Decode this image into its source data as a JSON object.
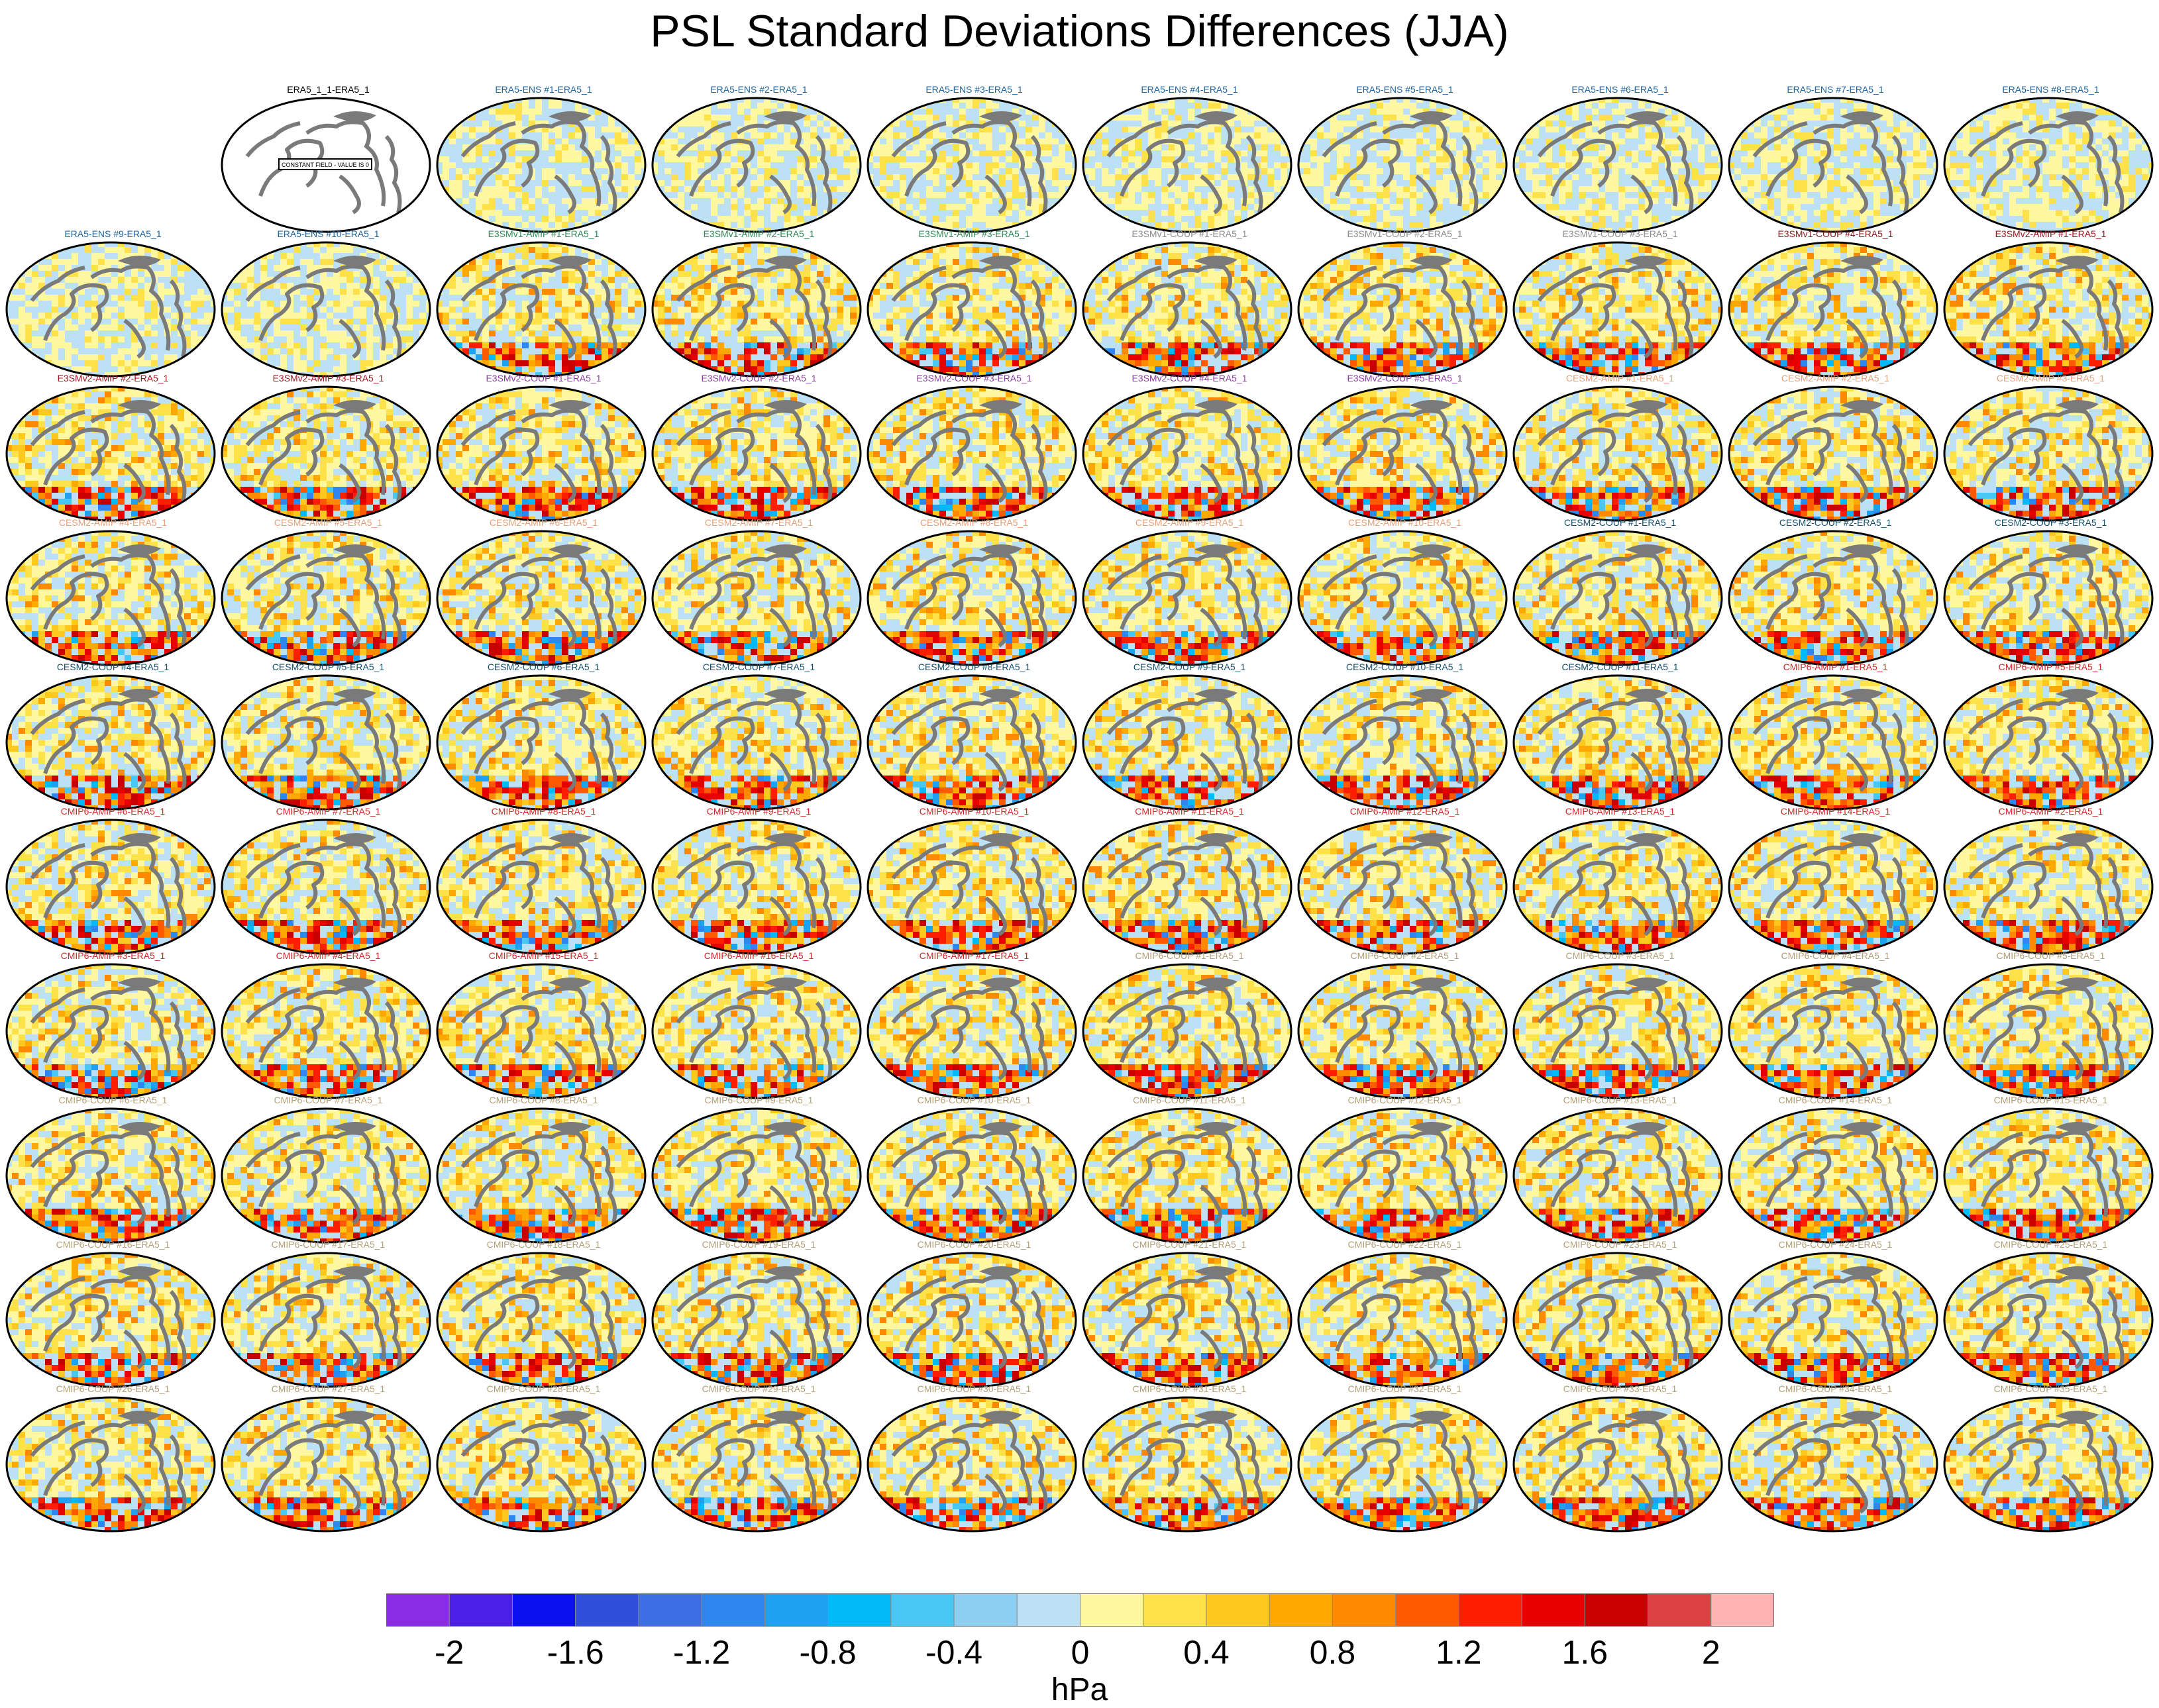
{
  "title": "PSL Standard Deviations Differences (JJA)",
  "colorbar": {
    "unit": "hPa",
    "ticks": [
      "-2",
      "-1.6",
      "-1.2",
      "-0.8",
      "-0.4",
      "0",
      "0.4",
      "0.8",
      "1.2",
      "1.6",
      "2"
    ],
    "colors": [
      "#8a2be6",
      "#4b1fe8",
      "#0a10f0",
      "#3050dc",
      "#3e6ee6",
      "#2e86f0",
      "#1ea2f0",
      "#00baf8",
      "#48c6f4",
      "#8ccff0",
      "#bce0f4",
      "#fff8a0",
      "#ffe14a",
      "#ffc81e",
      "#ffa800",
      "#ff8a00",
      "#ff5a00",
      "#ff1e00",
      "#e60000",
      "#c80000",
      "#dc4040",
      "#ffb4b4"
    ]
  },
  "group_colors": {
    "ref": "#000000",
    "ERA5-ENS": "#1e64a0",
    "E3SMv1-AMIP": "#2e8b57",
    "E3SMv1-COUP": "#8c8c8c",
    "E3SMv1-COUP-alt": "#8b1a1a",
    "E3SMv2-AMIP": "#a0141e",
    "E3SMv2-COUP": "#8c3ca0",
    "CESM2-AMIP": "#e6a078",
    "CESM2-COUP": "#14506e",
    "CMIP6-AMIP": "#d22828",
    "CMIP6-COUP": "#b4a078"
  },
  "reference_panel": {
    "label": "ERA5_1_1-ERA5_1",
    "group": "ref",
    "field_note": "CONSTANT FIELD - VALUE IS 0"
  },
  "panels": [
    {
      "label": "ERA5-ENS   #1-ERA5_1",
      "group": "ERA5-ENS"
    },
    {
      "label": "ERA5-ENS   #2-ERA5_1",
      "group": "ERA5-ENS"
    },
    {
      "label": "ERA5-ENS   #3-ERA5_1",
      "group": "ERA5-ENS"
    },
    {
      "label": "ERA5-ENS   #4-ERA5_1",
      "group": "ERA5-ENS"
    },
    {
      "label": "ERA5-ENS   #5-ERA5_1",
      "group": "ERA5-ENS"
    },
    {
      "label": "ERA5-ENS   #6-ERA5_1",
      "group": "ERA5-ENS"
    },
    {
      "label": "ERA5-ENS   #7-ERA5_1",
      "group": "ERA5-ENS"
    },
    {
      "label": "ERA5-ENS   #8-ERA5_1",
      "group": "ERA5-ENS"
    },
    {
      "label": "ERA5-ENS   #9-ERA5_1",
      "group": "ERA5-ENS"
    },
    {
      "label": "ERA5-ENS   #10-ERA5_1",
      "group": "ERA5-ENS"
    },
    {
      "label": "E3SMv1-AMIP #1-ERA5_1",
      "group": "E3SMv1-AMIP"
    },
    {
      "label": "E3SMv1-AMIP #2-ERA5_1",
      "group": "E3SMv1-AMIP"
    },
    {
      "label": "E3SMv1-AMIP #3-ERA5_1",
      "group": "E3SMv1-AMIP"
    },
    {
      "label": "E3SMv1-COUP #1-ERA5_1",
      "group": "E3SMv1-COUP"
    },
    {
      "label": "E3SMv1-COUP #2-ERA5_1",
      "group": "E3SMv1-COUP"
    },
    {
      "label": "E3SMv1-COUP #3-ERA5_1",
      "group": "E3SMv1-COUP"
    },
    {
      "label": "E3SMv1-COUP #4-ERA5_1",
      "group": "E3SMv1-COUP-alt"
    },
    {
      "label": "E3SMv2-AMIP #1-ERA5_1",
      "group": "E3SMv2-AMIP"
    },
    {
      "label": "E3SMv2-AMIP #2-ERA5_1",
      "group": "E3SMv2-AMIP"
    },
    {
      "label": "E3SMv2-AMIP #3-ERA5_1",
      "group": "E3SMv2-AMIP"
    },
    {
      "label": "E3SMv2-COUP #1-ERA5_1",
      "group": "E3SMv2-COUP"
    },
    {
      "label": "E3SMv2-COUP #2-ERA5_1",
      "group": "E3SMv2-COUP"
    },
    {
      "label": "E3SMv2-COUP #3-ERA5_1",
      "group": "E3SMv2-COUP"
    },
    {
      "label": "E3SMv2-COUP #4-ERA5_1",
      "group": "E3SMv2-COUP"
    },
    {
      "label": "E3SMv2-COUP #5-ERA5_1",
      "group": "E3SMv2-COUP"
    },
    {
      "label": "CESM2-AMIP  #1-ERA5_1",
      "group": "CESM2-AMIP"
    },
    {
      "label": "CESM2-AMIP  #2-ERA5_1",
      "group": "CESM2-AMIP"
    },
    {
      "label": "CESM2-AMIP  #3-ERA5_1",
      "group": "CESM2-AMIP"
    },
    {
      "label": "CESM2-AMIP  #4-ERA5_1",
      "group": "CESM2-AMIP"
    },
    {
      "label": "CESM2-AMIP  #5-ERA5_1",
      "group": "CESM2-AMIP"
    },
    {
      "label": "CESM2-AMIP  #6-ERA5_1",
      "group": "CESM2-AMIP"
    },
    {
      "label": "CESM2-AMIP  #7-ERA5_1",
      "group": "CESM2-AMIP"
    },
    {
      "label": "CESM2-AMIP  #8-ERA5_1",
      "group": "CESM2-AMIP"
    },
    {
      "label": "CESM2-AMIP  #9-ERA5_1",
      "group": "CESM2-AMIP"
    },
    {
      "label": "CESM2-AMIP  #10-ERA5_1",
      "group": "CESM2-AMIP"
    },
    {
      "label": "CESM2-COUP  #1-ERA5_1",
      "group": "CESM2-COUP"
    },
    {
      "label": "CESM2-COUP  #2-ERA5_1",
      "group": "CESM2-COUP"
    },
    {
      "label": "CESM2-COUP  #3-ERA5_1",
      "group": "CESM2-COUP"
    },
    {
      "label": "CESM2-COUP  #4-ERA5_1",
      "group": "CESM2-COUP"
    },
    {
      "label": "CESM2-COUP  #5-ERA5_1",
      "group": "CESM2-COUP"
    },
    {
      "label": "CESM2-COUP  #6-ERA5_1",
      "group": "CESM2-COUP"
    },
    {
      "label": "CESM2-COUP  #7-ERA5_1",
      "group": "CESM2-COUP"
    },
    {
      "label": "CESM2-COUP  #8-ERA5_1",
      "group": "CESM2-COUP"
    },
    {
      "label": "CESM2-COUP  #9-ERA5_1",
      "group": "CESM2-COUP"
    },
    {
      "label": "CESM2-COUP  #10-ERA5_1",
      "group": "CESM2-COUP"
    },
    {
      "label": "CESM2-COUP  #11-ERA5_1",
      "group": "CESM2-COUP"
    },
    {
      "label": "CMIP6-AMIP  #1-ERA5_1",
      "group": "CMIP6-AMIP"
    },
    {
      "label": "CMIP6-AMIP  #5-ERA5_1",
      "group": "CMIP6-AMIP"
    },
    {
      "label": "CMIP6-AMIP  #6-ERA5_1",
      "group": "CMIP6-AMIP"
    },
    {
      "label": "CMIP6-AMIP  #7-ERA5_1",
      "group": "CMIP6-AMIP"
    },
    {
      "label": "CMIP6-AMIP  #8-ERA5_1",
      "group": "CMIP6-AMIP"
    },
    {
      "label": "CMIP6-AMIP  #9-ERA5_1",
      "group": "CMIP6-AMIP"
    },
    {
      "label": "CMIP6-AMIP  #10-ERA5_1",
      "group": "CMIP6-AMIP"
    },
    {
      "label": "CMIP6-AMIP  #11-ERA5_1",
      "group": "CMIP6-AMIP"
    },
    {
      "label": "CMIP6-AMIP  #12-ERA5_1",
      "group": "CMIP6-AMIP"
    },
    {
      "label": "CMIP6-AMIP  #13-ERA5_1",
      "group": "CMIP6-AMIP"
    },
    {
      "label": "CMIP6-AMIP  #14-ERA5_1",
      "group": "CMIP6-AMIP"
    },
    {
      "label": "CMIP6-AMIP  #2-ERA5_1",
      "group": "CMIP6-AMIP"
    },
    {
      "label": "CMIP6-AMIP  #3-ERA5_1",
      "group": "CMIP6-AMIP"
    },
    {
      "label": "CMIP6-AMIP  #4-ERA5_1",
      "group": "CMIP6-AMIP"
    },
    {
      "label": "CMIP6-AMIP  #15-ERA5_1",
      "group": "CMIP6-AMIP"
    },
    {
      "label": "CMIP6-AMIP  #16-ERA5_1",
      "group": "CMIP6-AMIP"
    },
    {
      "label": "CMIP6-AMIP  #17-ERA5_1",
      "group": "CMIP6-AMIP"
    },
    {
      "label": "CMIP6-COUP  #1-ERA5_1",
      "group": "CMIP6-COUP"
    },
    {
      "label": "CMIP6-COUP  #2-ERA5_1",
      "group": "CMIP6-COUP"
    },
    {
      "label": "CMIP6-COUP  #3-ERA5_1",
      "group": "CMIP6-COUP"
    },
    {
      "label": "CMIP6-COUP  #4-ERA5_1",
      "group": "CMIP6-COUP"
    },
    {
      "label": "CMIP6-COUP  #5-ERA5_1",
      "group": "CMIP6-COUP"
    },
    {
      "label": "CMIP6-COUP  #6-ERA5_1",
      "group": "CMIP6-COUP"
    },
    {
      "label": "CMIP6-COUP  #7-ERA5_1",
      "group": "CMIP6-COUP"
    },
    {
      "label": "CMIP6-COUP  #8-ERA5_1",
      "group": "CMIP6-COUP"
    },
    {
      "label": "CMIP6-COUP  #9-ERA5_1",
      "group": "CMIP6-COUP"
    },
    {
      "label": "CMIP6-COUP  #10-ERA5_1",
      "group": "CMIP6-COUP"
    },
    {
      "label": "CMIP6-COUP  #11-ERA5_1",
      "group": "CMIP6-COUP"
    },
    {
      "label": "CMIP6-COUP  #12-ERA5_1",
      "group": "CMIP6-COUP"
    },
    {
      "label": "CMIP6-COUP  #13-ERA5_1",
      "group": "CMIP6-COUP"
    },
    {
      "label": "CMIP6-COUP  #14-ERA5_1",
      "group": "CMIP6-COUP"
    },
    {
      "label": "CMIP6-COUP  #15-ERA5_1",
      "group": "CMIP6-COUP"
    },
    {
      "label": "CMIP6-COUP  #16-ERA5_1",
      "group": "CMIP6-COUP"
    },
    {
      "label": "CMIP6-COUP  #17-ERA5_1",
      "group": "CMIP6-COUP"
    },
    {
      "label": "CMIP6-COUP  #18-ERA5_1",
      "group": "CMIP6-COUP"
    },
    {
      "label": "CMIP6-COUP  #19-ERA5_1",
      "group": "CMIP6-COUP"
    },
    {
      "label": "CMIP6-COUP  #20-ERA5_1",
      "group": "CMIP6-COUP"
    },
    {
      "label": "CMIP6-COUP  #21-ERA5_1",
      "group": "CMIP6-COUP"
    },
    {
      "label": "CMIP6-COUP  #22-ERA5_1",
      "group": "CMIP6-COUP"
    },
    {
      "label": "CMIP6-COUP  #23-ERA5_1",
      "group": "CMIP6-COUP"
    },
    {
      "label": "CMIP6-COUP  #24-ERA5_1",
      "group": "CMIP6-COUP"
    },
    {
      "label": "CMIP6-COUP  #25-ERA5_1",
      "group": "CMIP6-COUP"
    },
    {
      "label": "CMIP6-COUP  #26-ERA5_1",
      "group": "CMIP6-COUP"
    },
    {
      "label": "CMIP6-COUP  #27-ERA5_1",
      "group": "CMIP6-COUP"
    },
    {
      "label": "CMIP6-COUP  #28-ERA5_1",
      "group": "CMIP6-COUP"
    },
    {
      "label": "CMIP6-COUP  #29-ERA5_1",
      "group": "CMIP6-COUP"
    },
    {
      "label": "CMIP6-COUP  #30-ERA5_1",
      "group": "CMIP6-COUP"
    },
    {
      "label": "CMIP6-COUP  #31-ERA5_1",
      "group": "CMIP6-COUP"
    },
    {
      "label": "CMIP6-COUP  #32-ERA5_1",
      "group": "CMIP6-COUP"
    },
    {
      "label": "CMIP6-COUP  #33-ERA5_1",
      "group": "CMIP6-COUP"
    },
    {
      "label": "CMIP6-COUP  #34-ERA5_1",
      "group": "CMIP6-COUP"
    },
    {
      "label": "CMIP6-COUP  #35-ERA5_1",
      "group": "CMIP6-COUP"
    }
  ]
}
